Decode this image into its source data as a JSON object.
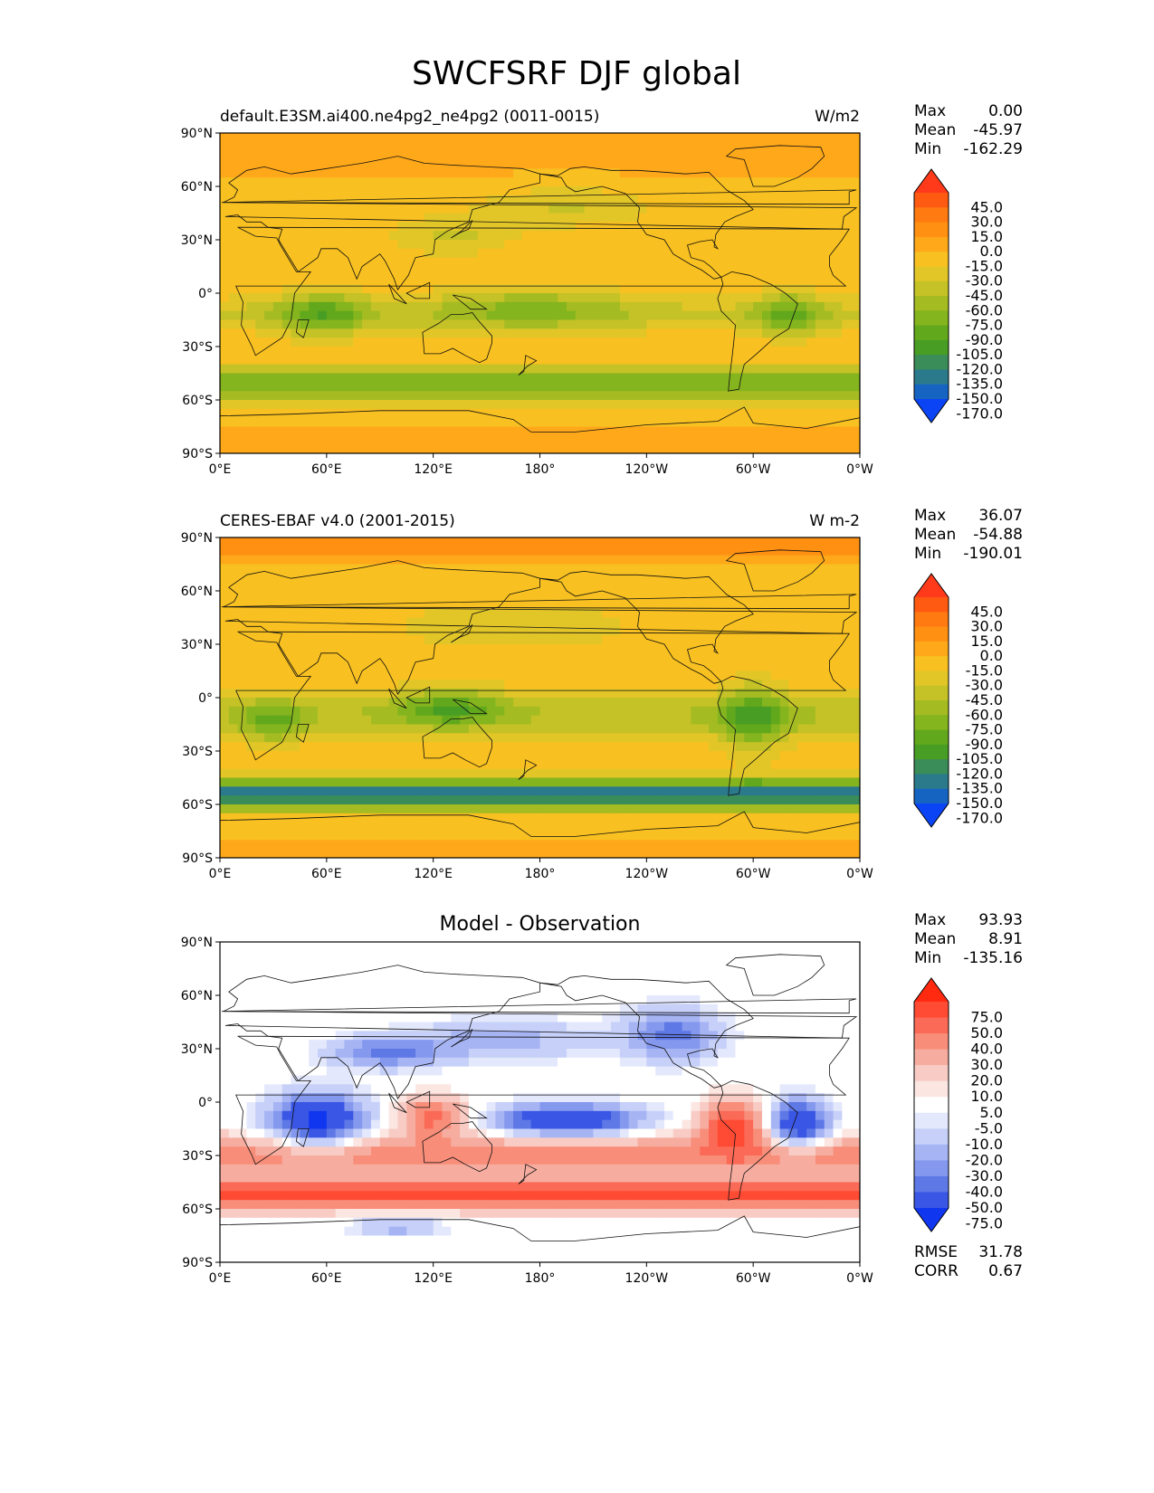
{
  "figure": {
    "title": "SWCFSRF DJF global"
  },
  "chart_data": [
    {
      "type": "heatmap",
      "title": "default.E3SM.ai400.ne4pg2_ne4pg2 (0011-0015)",
      "units": "W/m2",
      "x_ticks": [
        "0°E",
        "60°E",
        "120°E",
        "180°",
        "120°W",
        "60°W",
        "0°W"
      ],
      "y_ticks": [
        "90°N",
        "60°N",
        "30°N",
        "0°",
        "30°S",
        "60°S",
        "90°S"
      ],
      "xlim": [
        0,
        360
      ],
      "ylim": [
        -90,
        90
      ],
      "stats": [
        {
          "label": "Max",
          "value": "0.00"
        },
        {
          "label": "Mean",
          "value": "-45.97"
        },
        {
          "label": "Min",
          "value": "-162.29"
        }
      ],
      "colorbar": {
        "labels": [
          "45.0",
          "30.0",
          "15.0",
          "0.0",
          "-15.0",
          "-30.0",
          "-45.0",
          "-60.0",
          "-75.0",
          "-90.0",
          "-105.0",
          "-120.0",
          "-135.0",
          "-150.0",
          "-170.0"
        ],
        "colors": [
          "#ff3a1a",
          "#ff5a12",
          "#ff7a10",
          "#ff9012",
          "#ffa81a",
          "#f8c020",
          "#e2c628",
          "#c4c226",
          "#a4bc22",
          "#84b41e",
          "#62a81c",
          "#489e24",
          "#3a8c58",
          "#2a7a8c",
          "#1664c2",
          "#0a44f4"
        ]
      }
    },
    {
      "type": "heatmap",
      "title": "CERES-EBAF v4.0 (2001-2015)",
      "units": "W m-2",
      "x_ticks": [
        "0°E",
        "60°E",
        "120°E",
        "180°",
        "120°W",
        "60°W",
        "0°W"
      ],
      "y_ticks": [
        "90°N",
        "60°N",
        "30°N",
        "0°",
        "30°S",
        "60°S",
        "90°S"
      ],
      "xlim": [
        0,
        360
      ],
      "ylim": [
        -90,
        90
      ],
      "stats": [
        {
          "label": "Max",
          "value": "36.07"
        },
        {
          "label": "Mean",
          "value": "-54.88"
        },
        {
          "label": "Min",
          "value": "-190.01"
        }
      ],
      "colorbar": {
        "labels": [
          "45.0",
          "30.0",
          "15.0",
          "0.0",
          "-15.0",
          "-30.0",
          "-45.0",
          "-60.0",
          "-75.0",
          "-90.0",
          "-105.0",
          "-120.0",
          "-135.0",
          "-150.0",
          "-170.0"
        ],
        "colors": [
          "#ff3a1a",
          "#ff5a12",
          "#ff7a10",
          "#ff9012",
          "#ffa81a",
          "#f8c020",
          "#e2c628",
          "#c4c226",
          "#a4bc22",
          "#84b41e",
          "#62a81c",
          "#489e24",
          "#3a8c58",
          "#2a7a8c",
          "#1664c2",
          "#0a44f4"
        ]
      }
    },
    {
      "type": "heatmap",
      "title": "Model - Observation",
      "units": "",
      "x_ticks": [
        "0°E",
        "60°E",
        "120°E",
        "180°",
        "120°W",
        "60°W",
        "0°W"
      ],
      "y_ticks": [
        "90°N",
        "60°N",
        "30°N",
        "0°",
        "30°S",
        "60°S",
        "90°S"
      ],
      "xlim": [
        0,
        360
      ],
      "ylim": [
        -90,
        90
      ],
      "stats": [
        {
          "label": "Max",
          "value": "93.93"
        },
        {
          "label": "Mean",
          "value": "8.91"
        },
        {
          "label": "Min",
          "value": "-135.16"
        }
      ],
      "extra_stats": [
        {
          "label": "RMSE",
          "value": "31.78"
        },
        {
          "label": "CORR",
          "value": "0.67"
        }
      ],
      "colorbar": {
        "labels": [
          "75.0",
          "50.0",
          "40.0",
          "30.0",
          "20.0",
          "10.0",
          "5.0",
          "-5.0",
          "-10.0",
          "-20.0",
          "-30.0",
          "-40.0",
          "-50.0",
          "-75.0"
        ],
        "colors": [
          "#ff2a10",
          "#ff4a34",
          "#fb6a56",
          "#f88e7a",
          "#f6ada0",
          "#f8ccc4",
          "#fbe6e2",
          "#ffffff",
          "#e4e8fc",
          "#c6d0f8",
          "#a6b4f4",
          "#8498ee",
          "#5e78e6",
          "#3a56e4",
          "#1036f0"
        ]
      }
    }
  ]
}
